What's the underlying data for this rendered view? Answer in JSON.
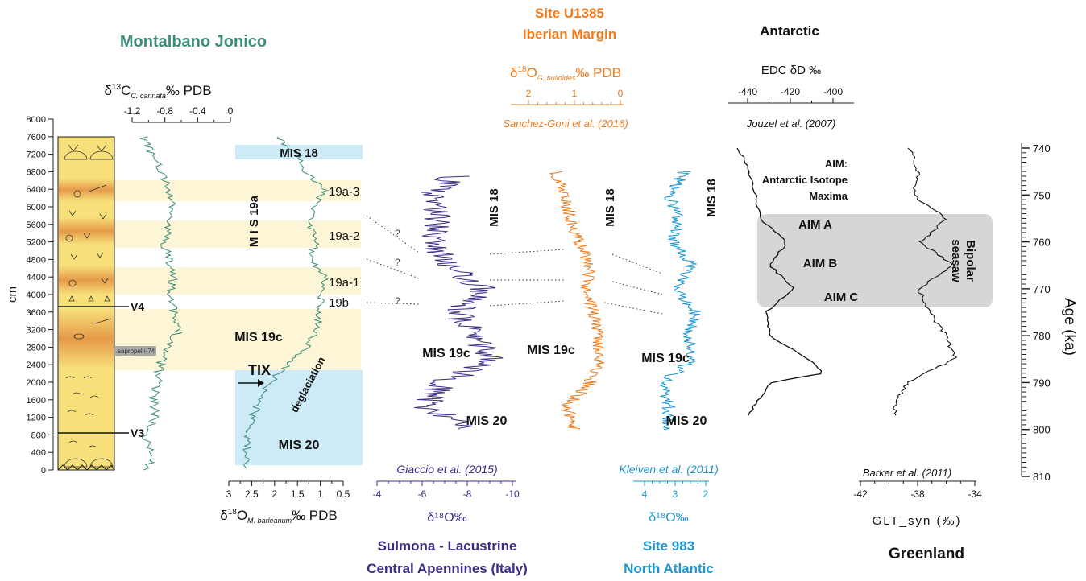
{
  "colors": {
    "montalbano": "#3d8c7b",
    "sulmona": "#3b2d8a",
    "u1385": "#f07a1a",
    "site983": "#1a96d2",
    "black": "#111111",
    "mis_band": "#cdeaf7",
    "interglacial_band": "#fcf6d6",
    "bipolar_box": "#d6d6d6",
    "lith_yellow": "#f7e07a",
    "lith_orange": "#e59a4a"
  },
  "titles": {
    "montalbano": "Montalbano Jonico",
    "u1385_l1": "Site U1385",
    "u1385_l2": "Iberian Margin",
    "antarctic": "Antarctic",
    "sulmona_l1": "Sulmona - Lacustrine",
    "sulmona_l2": "Central Apennines (Italy)",
    "site983_l1": "Site 983",
    "site983_l2": "North Atlantic",
    "greenland": "Greenland"
  },
  "axes": {
    "c13": {
      "label_pre": "δ",
      "label_sup": "13",
      "label_main": "C",
      "label_sub": "C. carinata",
      "label_post": "‰ PDB",
      "ticks": [
        "-1.2",
        "-0.8",
        "-0.4",
        "0"
      ]
    },
    "o18_mb": {
      "label_pre": "δ",
      "label_sup": "18",
      "label_main": "O",
      "label_sub": "M. barleanum",
      "label_post": "‰ PDB",
      "ticks": [
        "3",
        "2.5",
        "2",
        "1.5",
        "1",
        "0.5"
      ]
    },
    "o18_gb": {
      "label_pre": "δ",
      "label_sup": "18",
      "label_main": "O",
      "label_sub": "G. bulloides",
      "label_post": "‰ PDB",
      "ticks": [
        "2",
        "1",
        "0"
      ],
      "ref": "Sanchez-Goni et al. (2016)"
    },
    "edc": {
      "label": "EDC δD ‰",
      "ticks": [
        "-440",
        "-420",
        "-400"
      ],
      "ref": "Jouzel et al. (2007)"
    },
    "sulmona": {
      "label": "δ¹⁸O‰",
      "ticks": [
        "-4",
        "-6",
        "-8",
        "-10"
      ],
      "ref": "Giaccio et al. (2015)"
    },
    "s983": {
      "label": "δ¹⁸O‰",
      "ticks": [
        "4",
        "3",
        "2"
      ],
      "ref": "Kleiven et al. (2011)"
    },
    "glt": {
      "label": "GLT_syn (‰)",
      "ticks": [
        "-42",
        "-38",
        "-34"
      ],
      "ref": "Barker et al. (2011)"
    },
    "cm": {
      "label": "cm",
      "ticks": [
        "0",
        "400",
        "800",
        "1200",
        "1600",
        "2000",
        "2400",
        "2800",
        "3200",
        "3600",
        "4000",
        "4400",
        "4800",
        "5200",
        "5600",
        "6000",
        "6400",
        "6800",
        "7200",
        "7600",
        "8000"
      ]
    },
    "age": {
      "label": "Age (ka)",
      "ticks": [
        "740",
        "750",
        "760",
        "770",
        "780",
        "790",
        "800",
        "810"
      ]
    }
  },
  "labels": {
    "mis18": "MIS 18",
    "mis19a": "M I S 19a",
    "s19a3": "19a-3",
    "s19a2": "19a-2",
    "s19a1": "19a-1",
    "s19b": "19b",
    "mis19c": "MIS 19c",
    "mis20": "MIS 20",
    "tix": "TIX",
    "deglaciation": "deglaciation",
    "v4": "V4",
    "v3": "V3",
    "sapropel": "sapropel i-74",
    "q": "?",
    "aim_l1": "AIM:",
    "aim_l2": "Antarctic Isotope",
    "aim_l3": "Maxima",
    "aim_a": "AIM A",
    "aim_b": "AIM B",
    "aim_c": "AIM C",
    "bipolar_l1": "Bipolar",
    "bipolar_l2": "seasaw"
  },
  "chart_data": [
    {
      "type": "line",
      "name": "Montalbano Jonico δ13C C. carinata",
      "x_unit": "‰ PDB",
      "x_range": [
        -1.2,
        0
      ],
      "y_unit": "cm",
      "y": [
        0,
        400,
        800,
        1200,
        1600,
        2000,
        2400,
        2800,
        3200,
        3600,
        4000,
        4400,
        4800,
        5200,
        5600,
        6000,
        6400,
        6800,
        7200,
        7600
      ],
      "values": [
        -1.0,
        -0.95,
        -1.05,
        -0.9,
        -0.95,
        -0.9,
        -0.85,
        -0.8,
        -0.6,
        -0.7,
        -0.75,
        -0.7,
        -0.75,
        -0.8,
        -0.75,
        -0.7,
        -0.75,
        -0.85,
        -0.95,
        -1.05
      ]
    },
    {
      "type": "line",
      "name": "Montalbano Jonico δ18O M. barleanum",
      "x_unit": "‰ PDB",
      "x_range": [
        3,
        0.5
      ],
      "y_unit": "cm",
      "y": [
        0,
        400,
        800,
        1200,
        1600,
        2000,
        2400,
        2800,
        3200,
        3600,
        4000,
        4400,
        4800,
        5200,
        5600,
        6000,
        6400,
        6800,
        7200,
        7600
      ],
      "values": [
        2.7,
        2.6,
        2.6,
        2.5,
        2.3,
        2.1,
        1.7,
        1.3,
        1.1,
        1.0,
        1.0,
        0.9,
        1.2,
        1.1,
        1.2,
        1.1,
        0.9,
        1.3,
        1.5,
        2.0
      ]
    },
    {
      "type": "line",
      "name": "Sulmona δ18O",
      "x_unit": "‰",
      "x_range": [
        -4,
        -10
      ],
      "y_unit": "ka",
      "y": [
        746,
        750,
        755,
        760,
        765,
        770,
        775,
        780,
        785,
        790,
        795,
        800
      ],
      "values": [
        -7.4,
        -6.5,
        -6.8,
        -6.3,
        -7.2,
        -8.8,
        -7.6,
        -8.4,
        -8.9,
        -7.0,
        -6.2,
        -8.0
      ]
    },
    {
      "type": "line",
      "name": "Site U1385 δ18O G. bulloides",
      "x_unit": "‰ PDB",
      "x_range": [
        3,
        0
      ],
      "y_unit": "ka",
      "y": [
        745,
        750,
        755,
        760,
        765,
        770,
        775,
        780,
        785,
        790,
        795,
        800
      ],
      "values": [
        1.8,
        1.6,
        1.4,
        1.2,
        0.9,
        1.0,
        0.8,
        0.7,
        0.6,
        0.9,
        1.5,
        1.3
      ]
    },
    {
      "type": "line",
      "name": "Site 983 δ18O",
      "x_unit": "‰",
      "x_range": [
        4.8,
        1.4
      ],
      "y_unit": "ka",
      "y": [
        745,
        750,
        755,
        760,
        765,
        770,
        775,
        780,
        785,
        790,
        795,
        800
      ],
      "values": [
        2.5,
        3.2,
        2.8,
        3.0,
        2.2,
        2.9,
        2.0,
        2.3,
        2.1,
        3.5,
        3.2,
        3.3
      ]
    },
    {
      "type": "line",
      "name": "EDC δD",
      "x_unit": "‰",
      "x_range": [
        -450,
        -390
      ],
      "y_unit": "ka",
      "y": [
        740,
        745,
        750,
        755,
        760,
        765,
        770,
        775,
        780,
        785,
        788,
        790,
        795,
        797
      ],
      "values": [
        -445,
        -440,
        -437,
        -435,
        -422,
        -430,
        -419,
        -432,
        -430,
        -412,
        -404,
        -430,
        -438,
        -440
      ]
    },
    {
      "type": "line",
      "name": "GLT_syn",
      "x_unit": "‰",
      "x_range": [
        -42,
        -34
      ],
      "y_unit": "ka",
      "y": [
        740,
        745,
        750,
        755,
        760,
        765,
        770,
        775,
        780,
        785,
        790,
        795,
        797
      ],
      "values": [
        -38.5,
        -38,
        -38.3,
        -36,
        -37.8,
        -35.6,
        -37.9,
        -37.2,
        -36,
        -35.4,
        -38.8,
        -39.6,
        -39.5
      ]
    }
  ]
}
